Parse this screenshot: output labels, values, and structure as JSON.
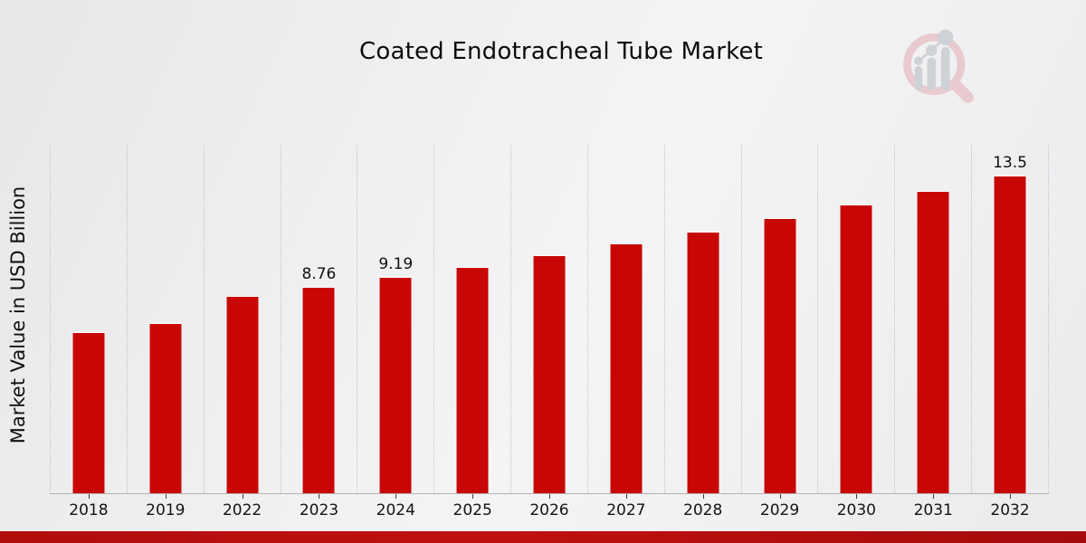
{
  "page": {
    "title": "Coated Endotracheal Tube Market",
    "logo_icon": "magnifier-bar-chart-logo"
  },
  "chart_data": {
    "type": "bar",
    "title": "Coated Endotracheal Tube Market",
    "ylabel": "Market Value in USD Billion",
    "xlabel": "",
    "categories": [
      "2018",
      "2019",
      "2022",
      "2023",
      "2024",
      "2025",
      "2026",
      "2027",
      "2028",
      "2029",
      "2030",
      "2031",
      "2032"
    ],
    "values": [
      6.85,
      7.24,
      8.4,
      8.76,
      9.19,
      9.64,
      10.12,
      10.62,
      11.14,
      11.69,
      12.27,
      12.87,
      13.5
    ],
    "point_labels": {
      "2023": "8.76",
      "2024": "9.19",
      "2032": "13.5"
    },
    "ylim": [
      0,
      14.86
    ],
    "grid": "vertical-dotted",
    "legend": "none",
    "bar_color": "#c80606",
    "bar_edge_color": "#f7f7f7"
  },
  "style": {
    "accent_red": "#b50f0f",
    "background_gray": "#efeff0",
    "logo_pink": "#e8c4c8",
    "logo_gray": "#c8cdd2"
  }
}
